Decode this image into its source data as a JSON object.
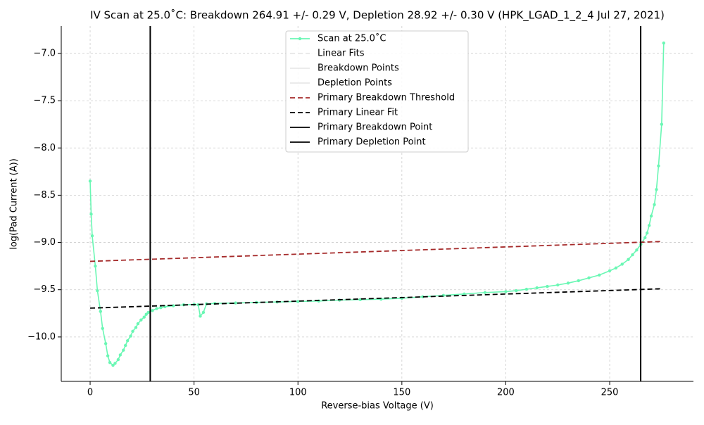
{
  "chart_data": {
    "type": "line",
    "title": "IV Scan at 25.0˚C: Breakdown 264.91 +/- 0.29 V, Depletion 28.92 +/- 0.30 V (HPK_LGAD_1_2_4 Jul 27, 2021)",
    "x_label": "Reverse-bias Voltage (V)",
    "y_label": "log(Pad Current (A))",
    "xlim": [
      -13.9,
      290.3
    ],
    "ylim": [
      -10.47,
      -6.71
    ],
    "xticks": [
      0,
      50,
      100,
      150,
      200,
      250
    ],
    "yticks": [
      {
        "value": -10,
        "label": "−10.0"
      },
      {
        "value": -9.5,
        "label": "−9.5"
      },
      {
        "value": -9,
        "label": "−9.0"
      },
      {
        "value": -8.5,
        "label": "−8.5"
      },
      {
        "value": -8,
        "label": "−8.0"
      },
      {
        "value": -7.5,
        "label": "−7.5"
      },
      {
        "value": -7,
        "label": "−7.0"
      }
    ],
    "grid": true,
    "legend": "upper center",
    "series": [
      {
        "name": "Scan at 25.0˚C",
        "color": "#6af7b4",
        "style": "solid",
        "marker": true,
        "x": [
          0,
          0.5,
          1,
          2.5,
          3.5,
          5,
          6,
          7.5,
          8.5,
          9.5,
          11,
          12,
          13.5,
          14.5,
          16,
          17,
          18,
          19.5,
          20.5,
          22,
          23,
          24.5,
          26,
          27,
          28,
          30,
          32,
          34,
          36,
          40,
          45,
          50,
          52,
          53,
          54.5,
          56,
          60,
          70,
          80,
          90,
          100,
          110,
          120,
          130,
          140,
          150,
          160,
          170,
          180,
          190,
          200,
          205,
          210,
          215,
          220,
          225,
          230,
          235,
          240,
          245,
          250,
          253,
          256,
          259,
          261,
          263,
          265,
          267,
          268,
          269,
          270,
          271.5,
          272.5,
          273.5,
          275,
          276
        ],
        "values": [
          -8.35,
          -8.7,
          -8.93,
          -9.25,
          -9.51,
          -9.73,
          -9.91,
          -10.07,
          -10.2,
          -10.27,
          -10.3,
          -10.28,
          -10.24,
          -10.19,
          -10.14,
          -10.09,
          -10.04,
          -9.99,
          -9.94,
          -9.9,
          -9.86,
          -9.82,
          -9.79,
          -9.76,
          -9.74,
          -9.72,
          -9.7,
          -9.69,
          -9.68,
          -9.67,
          -9.66,
          -9.655,
          -9.66,
          -9.78,
          -9.74,
          -9.65,
          -9.645,
          -9.64,
          -9.635,
          -9.63,
          -9.625,
          -9.62,
          -9.61,
          -9.605,
          -9.6,
          -9.59,
          -9.575,
          -9.56,
          -9.545,
          -9.53,
          -9.52,
          -9.51,
          -9.495,
          -9.48,
          -9.465,
          -9.45,
          -9.43,
          -9.405,
          -9.375,
          -9.345,
          -9.3,
          -9.27,
          -9.23,
          -9.18,
          -9.13,
          -9.08,
          -9.02,
          -8.95,
          -8.9,
          -8.82,
          -8.72,
          -8.6,
          -8.44,
          -8.19,
          -7.75,
          -6.89
        ]
      },
      {
        "name": "Linear Fits",
        "color": "#e8e8e8",
        "style": "dashed"
      },
      {
        "name": "Breakdown Points",
        "color": "#e8e8e8",
        "style": "solid"
      },
      {
        "name": "Depletion Points",
        "color": "#e8e8e8",
        "style": "solid"
      },
      {
        "name": "Primary Breakdown Threshold",
        "color": "#a52a2a",
        "style": "dashed",
        "x": [
          0,
          275
        ],
        "values": [
          -9.2,
          -8.99
        ]
      },
      {
        "name": "Primary Linear Fit",
        "color": "#000000",
        "style": "dashed",
        "x": [
          0,
          275
        ],
        "values": [
          -9.695,
          -9.49
        ]
      },
      {
        "name": "Primary Breakdown Point",
        "color": "#000000",
        "style": "solid",
        "xline": 264.91
      },
      {
        "name": "Primary Depletion Point",
        "color": "#000000",
        "style": "solid",
        "xline": 28.92
      }
    ]
  }
}
